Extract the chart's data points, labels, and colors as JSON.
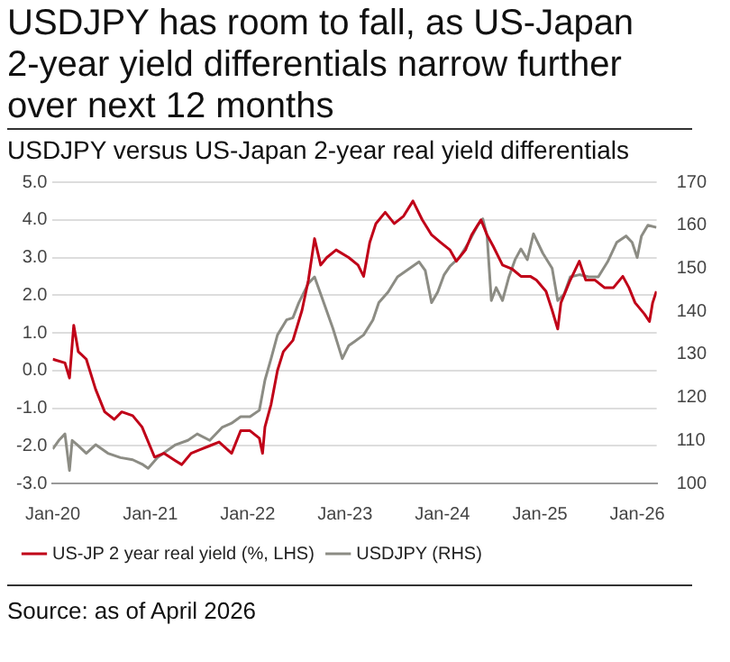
{
  "chart_data": {
    "type": "line",
    "title": "USDJPY has room to fall, as US-Japan 2-year yield differentials narrow further over next 12 months",
    "subtitle": "USDJPY versus US-Japan 2-year real yield differentials",
    "annotations": [
      "Source: as of April 2026"
    ],
    "xlim": [
      "2020-01-01",
      "2026-03-15"
    ],
    "xticks": [
      {
        "value": "2020-01-01",
        "label": "Jan-20"
      },
      {
        "value": "2021-01-01",
        "label": "Jan-21"
      },
      {
        "value": "2022-01-01",
        "label": "Jan-22"
      },
      {
        "value": "2023-01-01",
        "label": "Jan-23"
      },
      {
        "value": "2024-01-01",
        "label": "Jan-24"
      },
      {
        "value": "2025-01-01",
        "label": "Jan-25"
      },
      {
        "value": "2026-01-01",
        "label": "Jan-26"
      }
    ],
    "ylim": [
      -3,
      5
    ],
    "yticks": [
      {
        "value": -3,
        "label": "-3.0"
      },
      {
        "value": -2,
        "label": "-2.0"
      },
      {
        "value": -1,
        "label": "-1.0"
      },
      {
        "value": 0,
        "label": "0.0"
      },
      {
        "value": 1,
        "label": "1.0"
      },
      {
        "value": 2,
        "label": "2.0"
      },
      {
        "value": 3,
        "label": "3.0"
      },
      {
        "value": 4,
        "label": "4.0"
      },
      {
        "value": 5,
        "label": "5.0"
      }
    ],
    "y2lim": [
      100,
      170
    ],
    "y2ticks": [
      100,
      110,
      120,
      130,
      140,
      150,
      160,
      170
    ],
    "grid": "y",
    "legend": "bottom",
    "marker": "none",
    "line_style": "solid",
    "series": [
      {
        "name": "US-JP 2 year real yield (%, LHS)",
        "color": "#c00018",
        "x": [
          "2020-01-01",
          "2020-02-16",
          "2020-03-04",
          "2020-03-20",
          "2020-04-06",
          "2020-05-06",
          "2020-06-10",
          "2020-07-14",
          "2020-08-19",
          "2020-09-16",
          "2020-10-27",
          "2020-12-01",
          "2021-01-17",
          "2021-02-21",
          "2021-04-06",
          "2021-04-29",
          "2021-06-03",
          "2021-07-08",
          "2021-08-12",
          "2021-09-16",
          "2021-11-02",
          "2021-12-06",
          "2022-01-10",
          "2022-02-14",
          "2022-02-26",
          "2022-03-07",
          "2022-03-30",
          "2022-04-23",
          "2022-05-15",
          "2022-06-20",
          "2022-07-24",
          "2022-08-17",
          "2022-09-09",
          "2022-10-02",
          "2022-10-25",
          "2022-11-29",
          "2023-01-15",
          "2023-02-19",
          "2023-03-12",
          "2023-04-04",
          "2023-04-27",
          "2023-06-01",
          "2023-07-05",
          "2023-08-09",
          "2023-09-13",
          "2023-10-18",
          "2023-11-22",
          "2023-12-26",
          "2024-01-30",
          "2024-02-23",
          "2024-03-28",
          "2024-04-20",
          "2024-05-25",
          "2024-06-17",
          "2024-07-10",
          "2024-08-14",
          "2024-09-18",
          "2024-10-22",
          "2024-11-26",
          "2024-12-19",
          "2025-01-24",
          "2025-02-16",
          "2025-03-09",
          "2025-03-21",
          "2025-04-25",
          "2025-05-29",
          "2025-06-22",
          "2025-07-27",
          "2025-08-31",
          "2025-10-04",
          "2025-11-08",
          "2025-12-01",
          "2025-12-24",
          "2026-01-28",
          "2026-02-16",
          "2026-02-28",
          "2026-03-14"
        ],
        "values": [
          0.3,
          0.2,
          -0.2,
          1.2,
          0.5,
          0.3,
          -0.5,
          -1.1,
          -1.3,
          -1.1,
          -1.2,
          -1.5,
          -2.3,
          -2.2,
          -2.4,
          -2.5,
          -2.2,
          -2.1,
          -2.0,
          -1.9,
          -2.2,
          -1.6,
          -1.6,
          -1.8,
          -2.2,
          -1.5,
          -0.9,
          0.0,
          0.5,
          0.8,
          1.6,
          2.4,
          3.5,
          2.8,
          3.0,
          3.2,
          3.0,
          2.8,
          2.5,
          3.4,
          3.9,
          4.2,
          3.9,
          4.1,
          4.5,
          4.0,
          3.6,
          3.4,
          3.2,
          2.9,
          3.2,
          3.6,
          4.0,
          3.6,
          3.3,
          2.8,
          2.7,
          2.5,
          2.5,
          2.4,
          2.1,
          1.6,
          1.1,
          1.8,
          2.4,
          2.9,
          2.4,
          2.4,
          2.2,
          2.2,
          2.5,
          2.2,
          1.8,
          1.5,
          1.3,
          1.8,
          2.1
        ]
      },
      {
        "name": "USDJPY (RHS)",
        "color": "#8c8c84",
        "axis": "y2",
        "x": [
          "2020-01-01",
          "2020-01-24",
          "2020-02-16",
          "2020-03-04",
          "2020-03-14",
          "2020-04-02",
          "2020-05-06",
          "2020-06-10",
          "2020-07-26",
          "2020-09-11",
          "2020-10-27",
          "2020-12-01",
          "2020-12-24",
          "2021-01-28",
          "2021-03-02",
          "2021-04-06",
          "2021-05-22",
          "2021-06-26",
          "2021-08-12",
          "2021-09-27",
          "2021-11-02",
          "2021-12-06",
          "2022-01-10",
          "2022-02-14",
          "2022-03-07",
          "2022-03-30",
          "2022-04-23",
          "2022-05-27",
          "2022-06-20",
          "2022-07-12",
          "2022-08-17",
          "2022-09-09",
          "2022-10-02",
          "2022-11-17",
          "2022-12-22",
          "2023-01-15",
          "2023-02-07",
          "2023-03-12",
          "2023-04-16",
          "2023-05-08",
          "2023-06-12",
          "2023-07-17",
          "2023-08-21",
          "2023-10-06",
          "2023-10-29",
          "2023-11-22",
          "2023-12-15",
          "2024-01-08",
          "2024-01-30",
          "2024-03-05",
          "2024-04-09",
          "2024-05-13",
          "2024-06-01",
          "2024-06-17",
          "2024-07-03",
          "2024-07-21",
          "2024-08-14",
          "2024-09-07",
          "2024-09-30",
          "2024-10-22",
          "2024-11-15",
          "2024-12-08",
          "2025-01-12",
          "2025-02-16",
          "2025-03-09",
          "2025-04-02",
          "2025-04-25",
          "2025-05-29",
          "2025-07-03",
          "2025-08-08",
          "2025-09-12",
          "2025-10-16",
          "2025-11-20",
          "2025-12-13",
          "2026-01-01",
          "2026-01-17",
          "2026-02-10",
          "2026-03-14"
        ],
        "values": [
          108,
          110,
          111.5,
          103,
          110,
          109,
          107,
          109,
          107,
          106,
          105.5,
          104.5,
          103.5,
          106,
          107.5,
          109,
          110,
          111.5,
          110,
          113,
          114,
          115.5,
          115.5,
          117,
          124,
          129,
          134.5,
          138,
          138.5,
          142,
          146.5,
          148,
          144,
          136,
          129,
          132,
          133,
          134.5,
          138,
          142,
          144.5,
          148,
          149.5,
          151.5,
          149.5,
          142,
          144.5,
          148.5,
          150.5,
          152.5,
          156,
          160,
          161.5,
          157.5,
          142.5,
          145.5,
          142.5,
          148,
          152,
          154.5,
          152,
          158,
          153.5,
          150,
          142.5,
          144,
          148,
          148.5,
          148,
          148,
          151.5,
          156,
          157.5,
          156,
          152.5,
          157.5,
          160,
          159.5
        ]
      }
    ]
  }
}
